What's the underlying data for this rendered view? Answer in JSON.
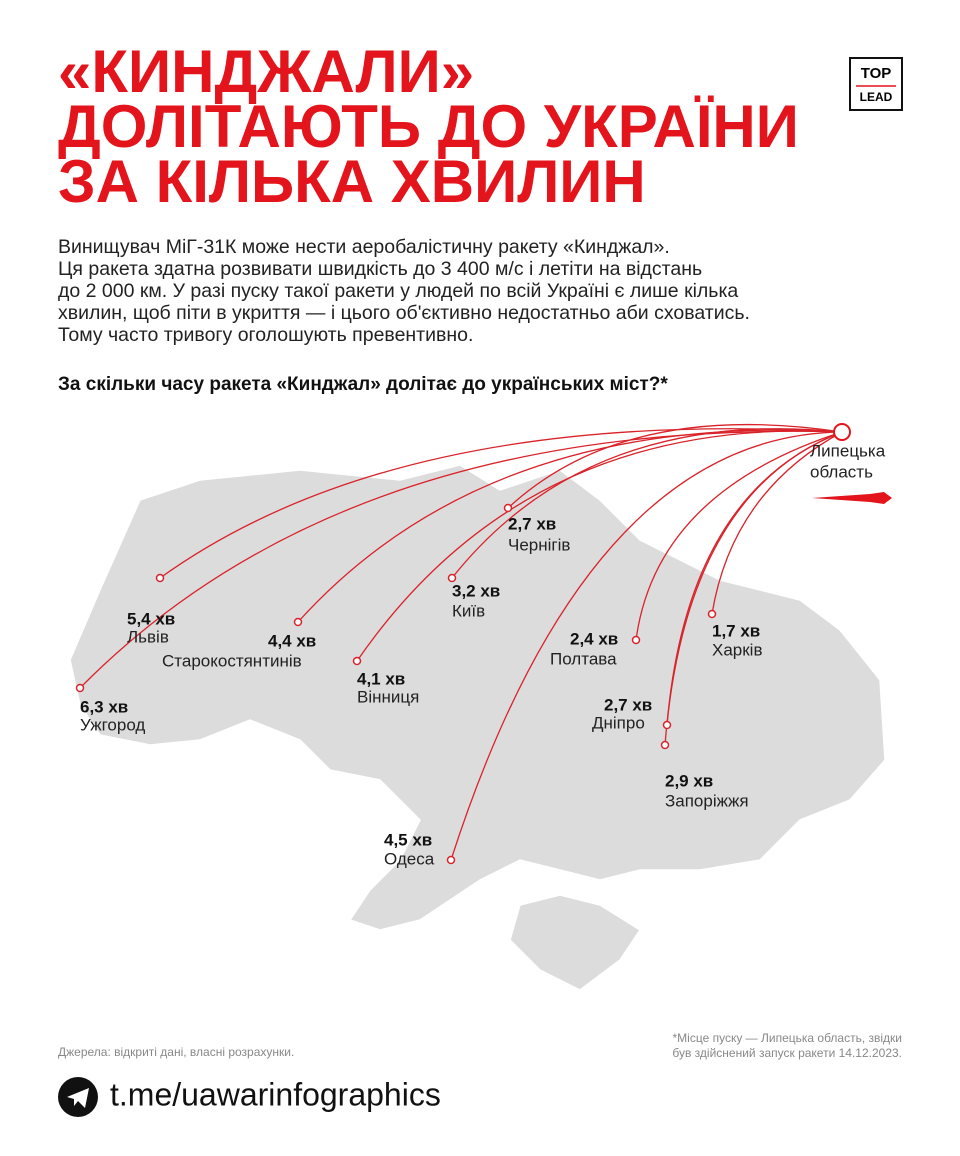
{
  "logo": {
    "line1": "TOP",
    "line2": "LEAD"
  },
  "title": [
    "«КИНДЖАЛИ»",
    "ДОЛІТАЮТЬ ДО УКРАЇНИ",
    "ЗА КІЛЬКА ХВИЛИН"
  ],
  "intro": [
    "Винищувач МіГ-31К може нести аеробалістичну ракету «Кинджал».",
    "Ця ракета здатна розвивати швидкість до 3 400 м/с і летіти на відстань",
    "до 2 000 км. У разі пуску такої ракети у людей по всій Україні є лише кілька",
    "хвилин, щоб піти в укриття — і цього об'єктивно недостатньо аби сховатись.",
    "Тому часто тривогу оголошують превентивно."
  ],
  "question": "За скільки часу ракета «Кинджал» долітає до українських міст?*",
  "launch": [
    "Липецька",
    "область"
  ],
  "cities": [
    {
      "time": "2,7 хв",
      "name": "Чернігів"
    },
    {
      "time": "3,2 хв",
      "name": "Київ"
    },
    {
      "time": "5,4 хв",
      "name": "Львів"
    },
    {
      "time": "4,4 хв",
      "name": "Старокостянтинів"
    },
    {
      "time": "4,1 хв",
      "name": "Вінниця"
    },
    {
      "time": "6,3 хв",
      "name": "Ужгород"
    },
    {
      "time": "2,4 хв",
      "name": "Полтава"
    },
    {
      "time": "1,7 хв",
      "name": "Харків"
    },
    {
      "time": "2,7 хв",
      "name": "Дніпро"
    },
    {
      "time": "2,9 хв",
      "name": "Запоріжжя"
    },
    {
      "time": "4,5 хв",
      "name": "Одеса"
    }
  ],
  "sources": "Джерела: відкриті дані, власні розрахунки.",
  "note": [
    "*Місце пуску — Липецька область, звідки",
    "був здійснений запуск ракети 14.12.2023."
  ],
  "link": "t.me/uawarinfographics"
}
